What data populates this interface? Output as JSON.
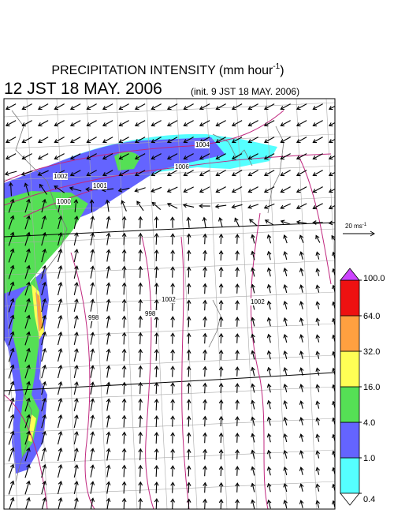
{
  "header": {
    "title": "PRECIPITATION INTENSITY (mm hour",
    "title_exp": "-1",
    "title_close": ")",
    "time": "12 JST 18 MAY. 2006",
    "init": "(init. 9 JST 18 MAY. 2006)"
  },
  "reference_vector": {
    "label": "20 ms",
    "exp": "-1"
  },
  "legend": {
    "levels": [
      {
        "value": 0.4,
        "label": "0.4"
      },
      {
        "value": 1,
        "label": "1.0"
      },
      {
        "value": 4,
        "label": "4.0"
      },
      {
        "value": 16,
        "label": "16.0"
      },
      {
        "value": 32,
        "label": "32.0"
      },
      {
        "value": 64,
        "label": "64.0"
      },
      {
        "value": 100,
        "label": "100.0"
      }
    ],
    "colors": [
      "#55ffff",
      "#6464ff",
      "#55e055",
      "#ffff55",
      "#ffa040",
      "#ee1111"
    ],
    "over_color": "#cc44ff",
    "under_color": "#ffffff"
  },
  "contour_labels": [
    "1004",
    "1006",
    "1002",
    "1001",
    "1000",
    "998",
    "998",
    "1002",
    "1002"
  ]
}
